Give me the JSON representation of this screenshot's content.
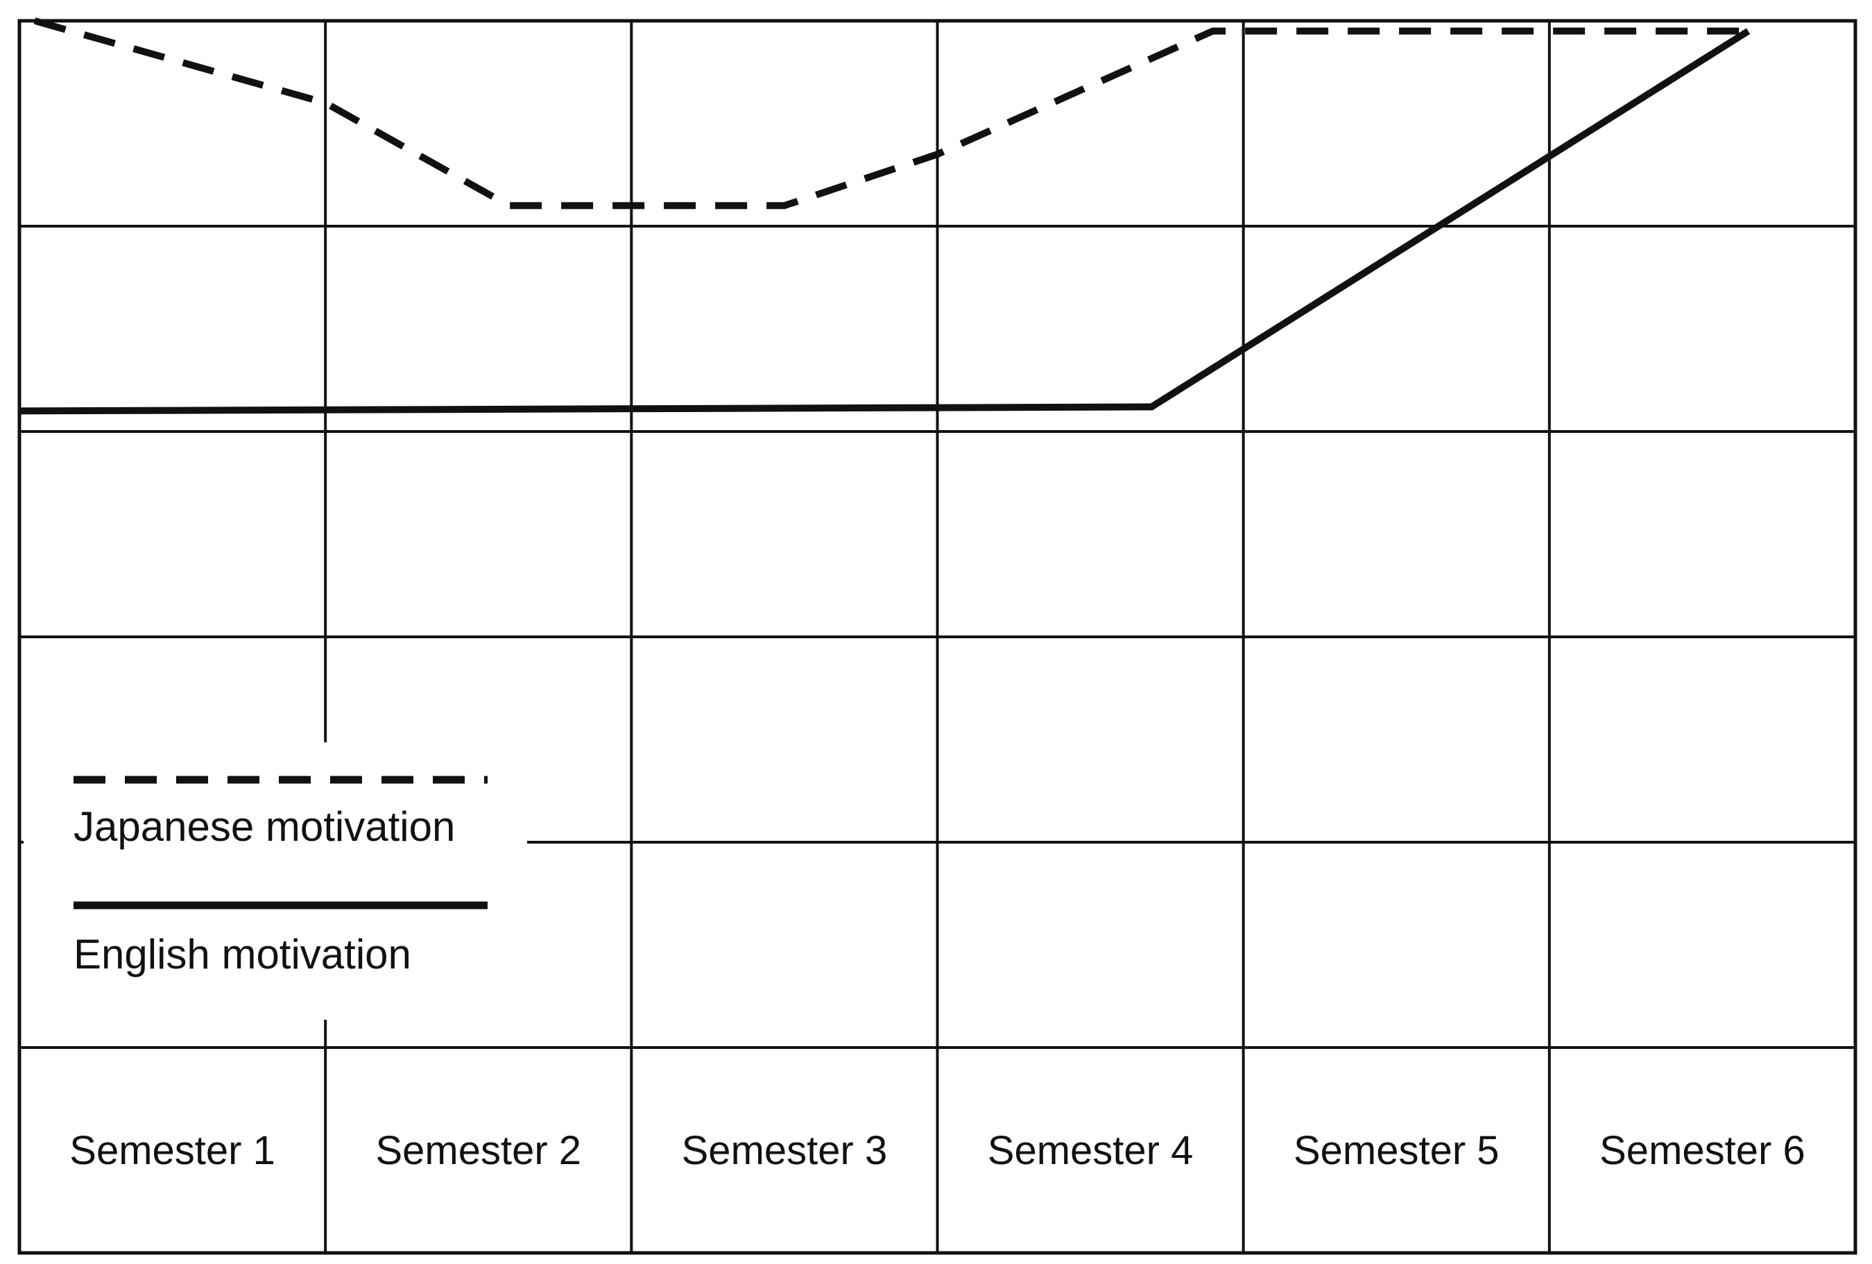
{
  "chart_data": {
    "type": "line",
    "title": "",
    "xlabel": "",
    "ylabel": "",
    "categories": [
      "Semester 1",
      "Semester 2",
      "Semester 3",
      "Semester 4",
      "Semester 5",
      "Semester 6"
    ],
    "x_range": [
      0,
      6
    ],
    "ylim": [
      0,
      5
    ],
    "grid": true,
    "series": [
      {
        "name": "Japanese motivation",
        "style": "dashed",
        "points": [
          {
            "x": 0.05,
            "y": 5.0
          },
          {
            "x": 1.0,
            "y": 4.6
          },
          {
            "x": 1.6,
            "y": 4.1
          },
          {
            "x": 2.5,
            "y": 4.1
          },
          {
            "x": 3.0,
            "y": 4.35
          },
          {
            "x": 3.9,
            "y": 4.95
          },
          {
            "x": 5.65,
            "y": 4.95
          }
        ]
      },
      {
        "name": "English motivation",
        "style": "solid",
        "points": [
          {
            "x": 0.0,
            "y": 3.1
          },
          {
            "x": 3.7,
            "y": 3.12
          },
          {
            "x": 5.65,
            "y": 4.95
          }
        ]
      }
    ],
    "legend": {
      "position": "bottom-left",
      "entries": [
        {
          "label": "Japanese motivation",
          "style": "dashed"
        },
        {
          "label": "English motivation",
          "style": "solid"
        }
      ]
    },
    "colors": {
      "line": "#111111",
      "grid": "#111111",
      "background": "#ffffff"
    }
  }
}
